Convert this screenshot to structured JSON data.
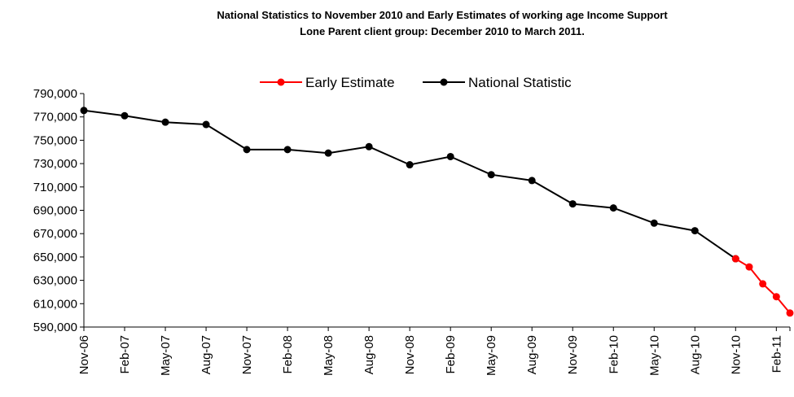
{
  "chart_data": {
    "type": "line",
    "title_lines": [
      "National Statistics to November 2010 and Early Estimates of working age Income Support",
      "Lone Parent client group: December 2010 to March 2011."
    ],
    "xlabel": "",
    "ylabel": "",
    "ylim": [
      590000,
      790000
    ],
    "y_ticks": [
      "790,000",
      "770,000",
      "750,000",
      "730,000",
      "710,000",
      "690,000",
      "670,000",
      "650,000",
      "630,000",
      "610,000",
      "590,000"
    ],
    "y_tick_values": [
      790000,
      770000,
      750000,
      730000,
      710000,
      690000,
      670000,
      650000,
      630000,
      610000,
      590000
    ],
    "x_range": [
      "Nov-06",
      "Mar-11"
    ],
    "x_tick_labels": [
      "Nov-06",
      "Feb-07",
      "May-07",
      "Aug-07",
      "Nov-07",
      "Feb-08",
      "May-08",
      "Aug-08",
      "Nov-08",
      "Feb-09",
      "May-09",
      "Aug-09",
      "Nov-09",
      "Feb-10",
      "May-10",
      "Aug-10",
      "Nov-10",
      "Feb-11"
    ],
    "legend_position": "top",
    "grid": false,
    "series": [
      {
        "name": "Early Estimate",
        "color": "#ff0000",
        "points": [
          {
            "x": "Nov-10",
            "y": 648500
          },
          {
            "x": "Dec-10",
            "y": 641500
          },
          {
            "x": "Jan-11",
            "y": 627000
          },
          {
            "x": "Feb-11",
            "y": 616000
          },
          {
            "x": "Mar-11",
            "y": 602000
          }
        ]
      },
      {
        "name": "National Statistic",
        "color": "#000000",
        "points": [
          {
            "x": "Nov-06",
            "y": 775500
          },
          {
            "x": "Feb-07",
            "y": 771000
          },
          {
            "x": "May-07",
            "y": 765500
          },
          {
            "x": "Aug-07",
            "y": 763500
          },
          {
            "x": "Nov-07",
            "y": 742000
          },
          {
            "x": "Feb-08",
            "y": 742000
          },
          {
            "x": "May-08",
            "y": 739000
          },
          {
            "x": "Aug-08",
            "y": 744500
          },
          {
            "x": "Nov-08",
            "y": 729000
          },
          {
            "x": "Feb-09",
            "y": 736000
          },
          {
            "x": "May-09",
            "y": 720500
          },
          {
            "x": "Aug-09",
            "y": 715500
          },
          {
            "x": "Nov-09",
            "y": 695500
          },
          {
            "x": "Feb-10",
            "y": 692000
          },
          {
            "x": "May-10",
            "y": 679000
          },
          {
            "x": "Aug-10",
            "y": 672500
          },
          {
            "x": "Nov-10",
            "y": 648500
          }
        ]
      }
    ]
  }
}
